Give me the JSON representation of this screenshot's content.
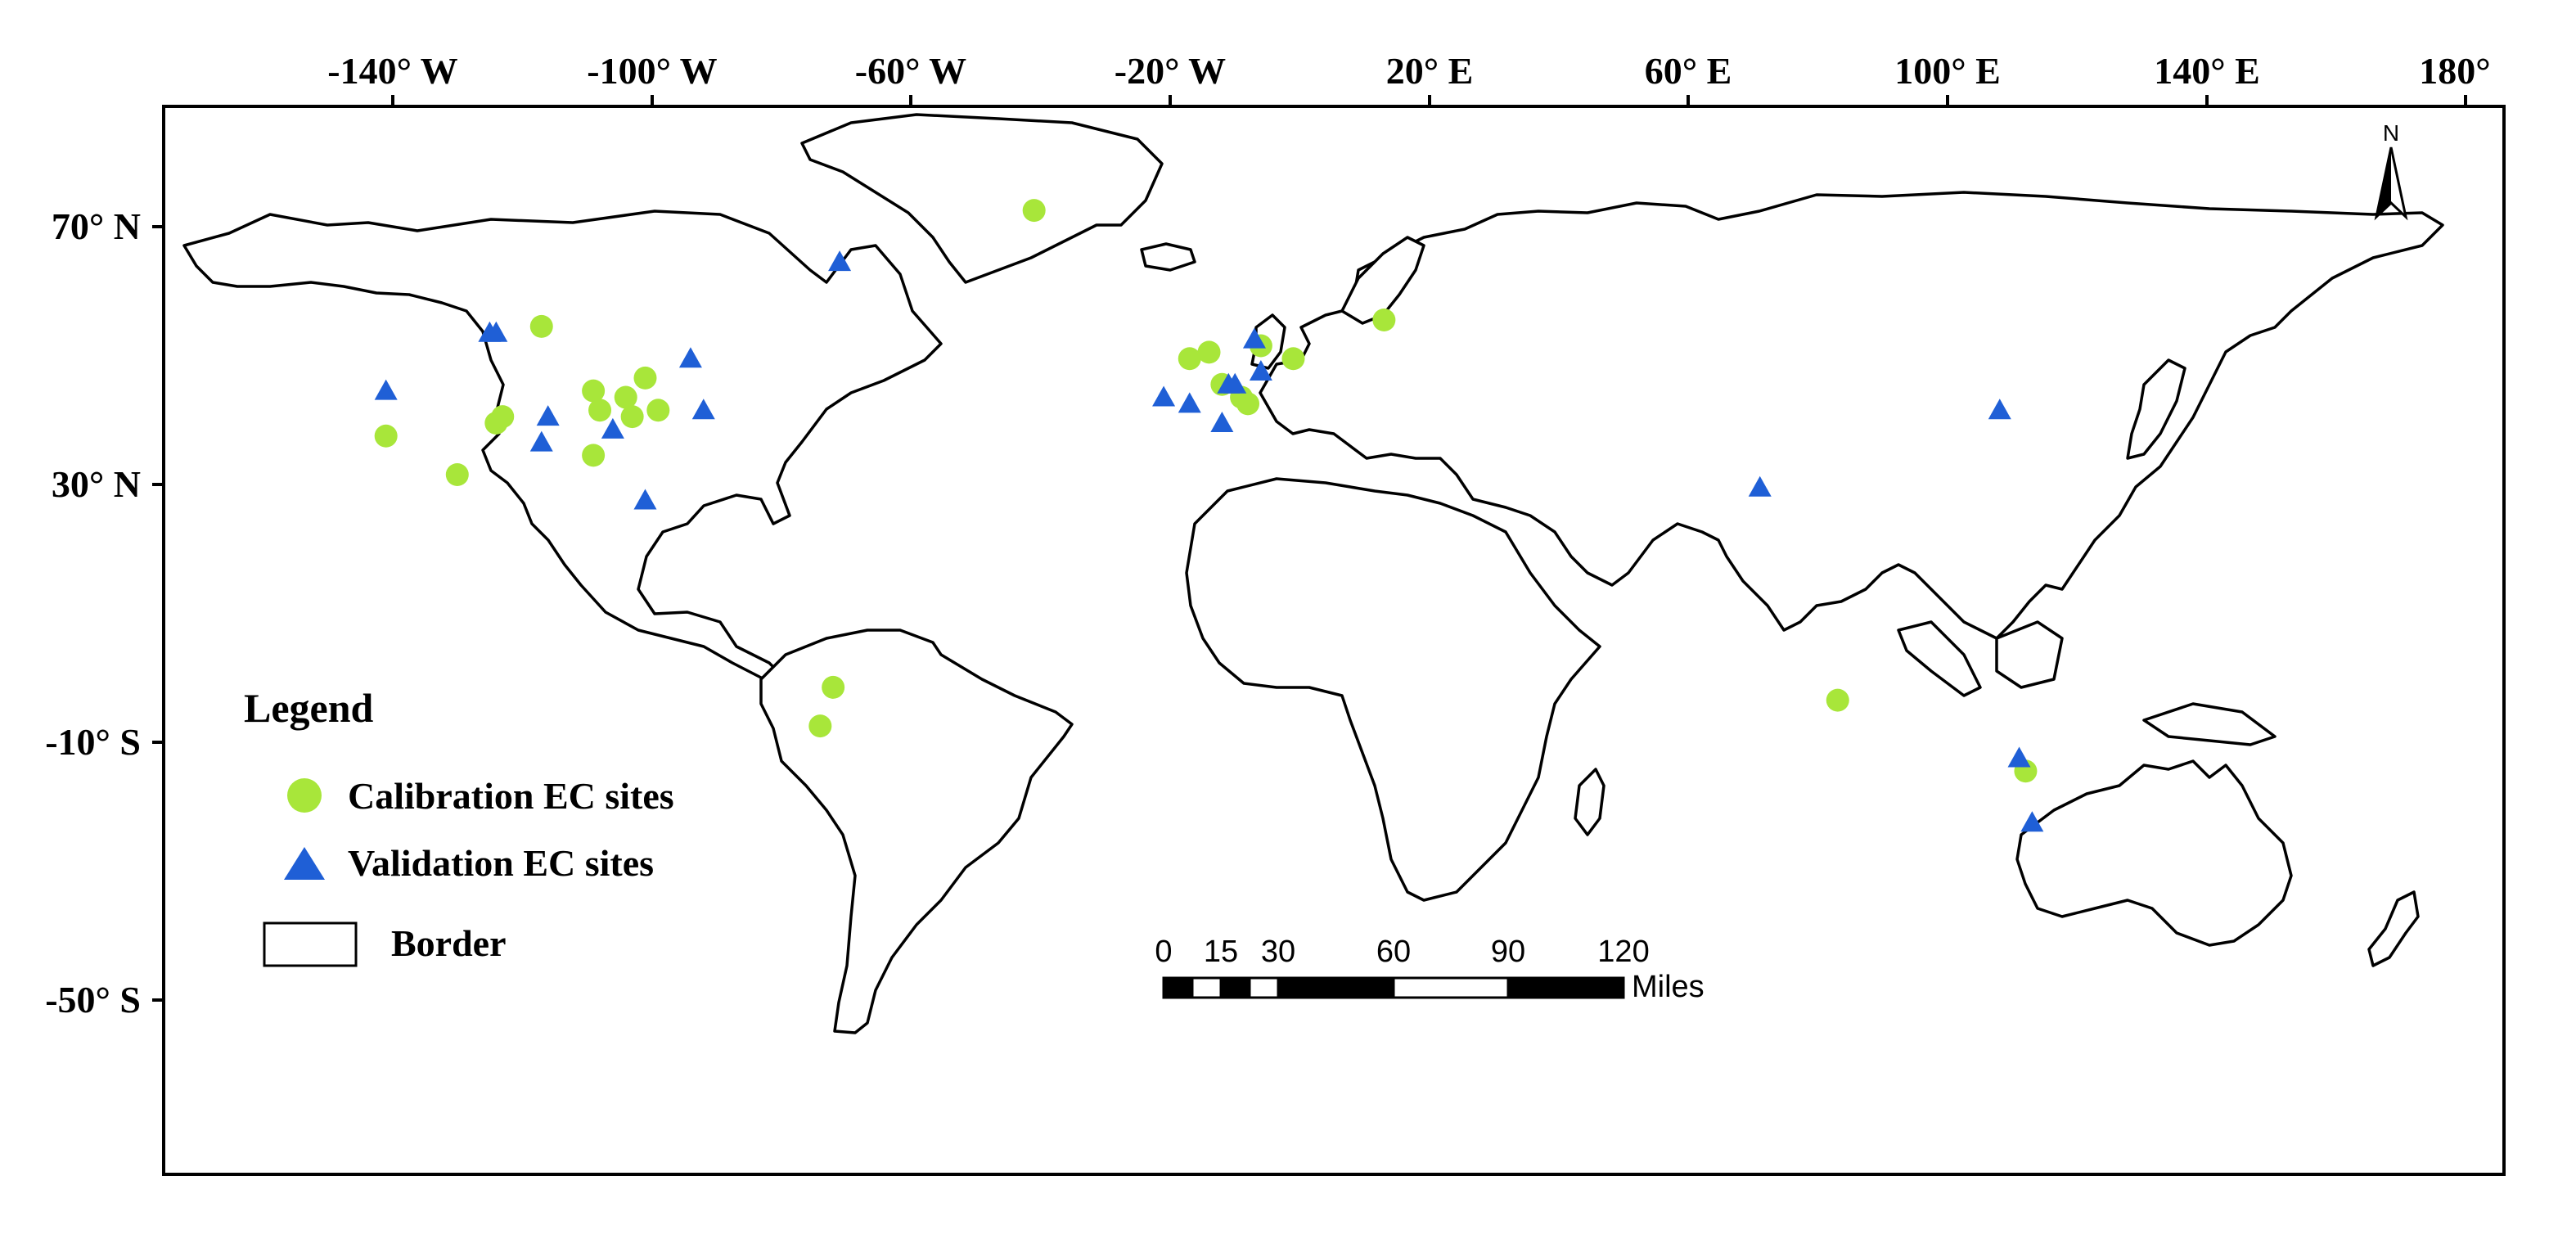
{
  "map": {
    "top_axis_labels": [
      "-140° W",
      "-100° W",
      "-60° W",
      "-20° W",
      "20° E",
      "60° E",
      "100° E",
      "140° E",
      "180°"
    ],
    "left_axis_labels": [
      "70° N",
      "30° N",
      "-10° S",
      "-50° S"
    ],
    "north_arrow_label": "N",
    "colors": {
      "calibration": "#a8e63a",
      "validation": "#1f5fd6",
      "border": "#000000",
      "background": "#ffffff"
    }
  },
  "legend": {
    "title": "Legend",
    "calibration_label": "Calibration EC sites",
    "validation_label": "Validation EC sites",
    "border_label": "Border"
  },
  "scale_bar": {
    "ticks": [
      "0",
      "15",
      "30",
      "60",
      "90",
      "120"
    ],
    "unit": "Miles"
  },
  "calibration_sites": [
    {
      "lon": -21,
      "lat": 73
    },
    {
      "lon": -97,
      "lat": 55
    },
    {
      "lon": -104,
      "lat": 40
    },
    {
      "lon": -103,
      "lat": 41
    },
    {
      "lon": -89,
      "lat": 45
    },
    {
      "lon": -88,
      "lat": 42
    },
    {
      "lon": -84,
      "lat": 44
    },
    {
      "lon": -83,
      "lat": 41
    },
    {
      "lon": -81,
      "lat": 47
    },
    {
      "lon": -79,
      "lat": 42
    },
    {
      "lon": -89,
      "lat": 35
    },
    {
      "lon": -121,
      "lat": 38
    },
    {
      "lon": -110,
      "lat": 32
    },
    {
      "lon": -52,
      "lat": -1
    },
    {
      "lon": -54,
      "lat": -7
    },
    {
      "lon": 3,
      "lat": 50
    },
    {
      "lon": 6,
      "lat": 51
    },
    {
      "lon": 8,
      "lat": 46
    },
    {
      "lon": 11,
      "lat": 44
    },
    {
      "lon": 12,
      "lat": 43
    },
    {
      "lon": 14,
      "lat": 52
    },
    {
      "lon": 19,
      "lat": 50
    },
    {
      "lon": 33,
      "lat": 56
    },
    {
      "lon": 103,
      "lat": -3
    },
    {
      "lon": 132,
      "lat": -14
    }
  ],
  "validation_sites": [
    {
      "lon": -51,
      "lat": 65
    },
    {
      "lon": -105,
      "lat": 54
    },
    {
      "lon": -104,
      "lat": 54
    },
    {
      "lon": -121,
      "lat": 45
    },
    {
      "lon": -96,
      "lat": 41
    },
    {
      "lon": -97,
      "lat": 37
    },
    {
      "lon": -86,
      "lat": 39
    },
    {
      "lon": -74,
      "lat": 50
    },
    {
      "lon": -72,
      "lat": 42
    },
    {
      "lon": -81,
      "lat": 28
    },
    {
      "lon": -1,
      "lat": 44
    },
    {
      "lon": 3,
      "lat": 43
    },
    {
      "lon": 9,
      "lat": 46
    },
    {
      "lon": 10,
      "lat": 46
    },
    {
      "lon": 13,
      "lat": 53
    },
    {
      "lon": 14,
      "lat": 48
    },
    {
      "lon": 8,
      "lat": 40
    },
    {
      "lon": 91,
      "lat": 30
    },
    {
      "lon": 128,
      "lat": 42
    },
    {
      "lon": 131,
      "lat": -12
    },
    {
      "lon": 133,
      "lat": -22
    }
  ]
}
